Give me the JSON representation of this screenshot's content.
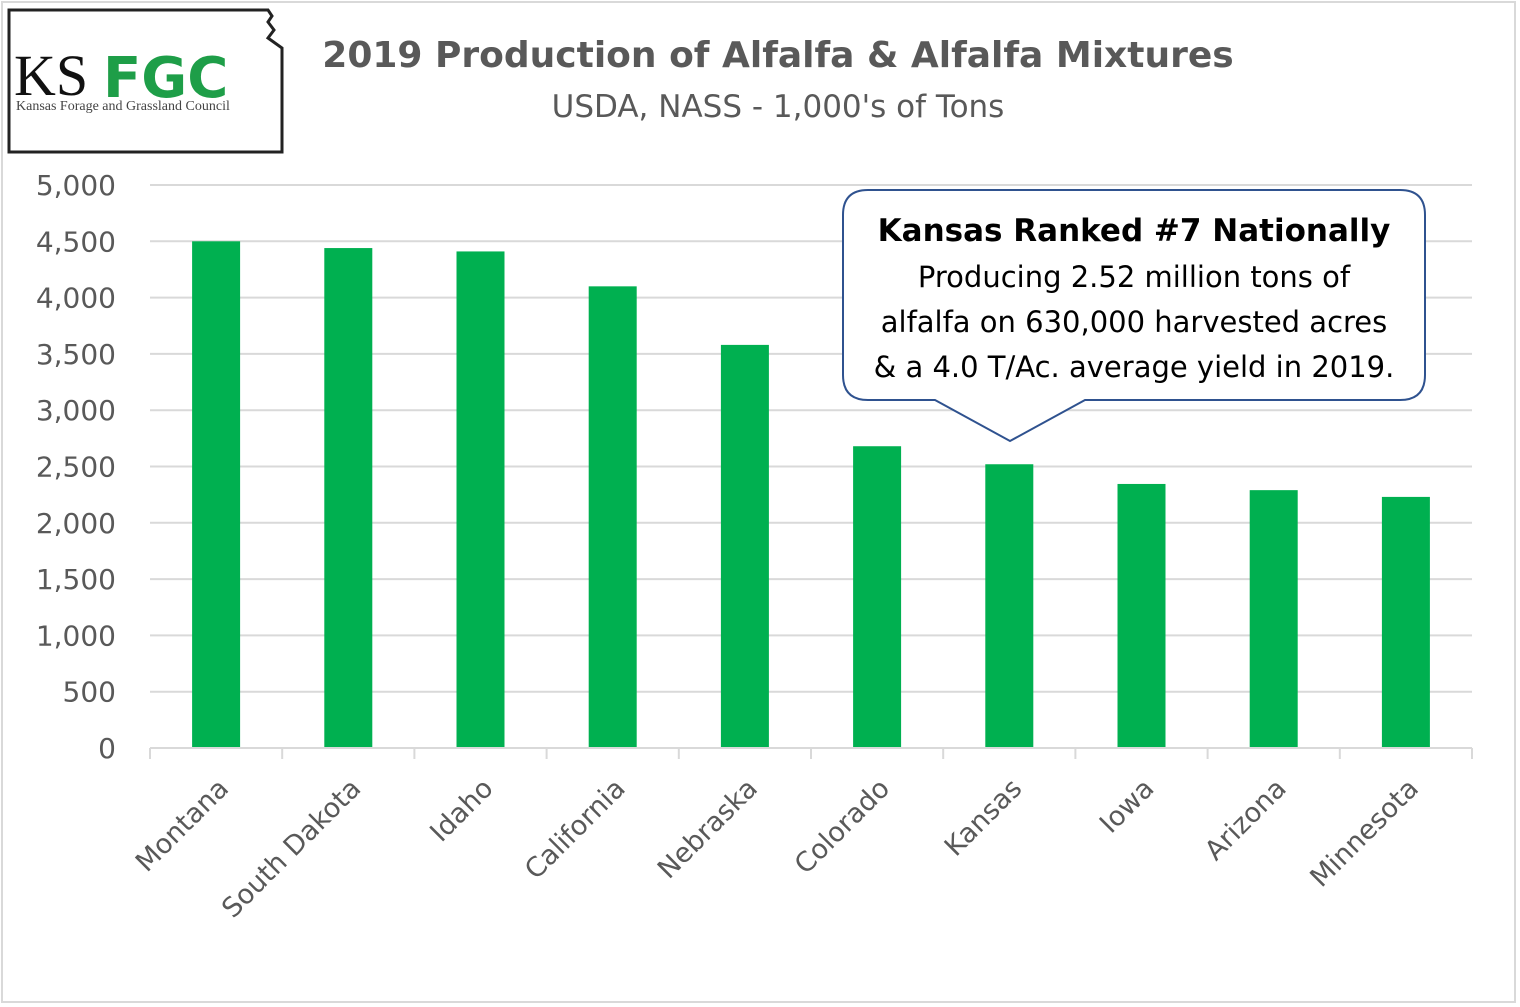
{
  "logo": {
    "text_ks": "KS",
    "text_fgc": "FGC",
    "tagline": "Kansas Forage and Grassland Council"
  },
  "colors": {
    "bar": "#00b050",
    "grid": "#d9d9d9",
    "callout_border": "#2f528f",
    "logo_green": "#1e9e48"
  },
  "chart_data": {
    "type": "bar",
    "title": "2019 Production of Alfalfa & Alfalfa Mixtures",
    "subtitle": "USDA, NASS - 1,000's of Tons",
    "xlabel": "",
    "ylabel": "",
    "ylim": [
      0,
      5000
    ],
    "yticks": [
      "0",
      "500",
      "1,000",
      "1,500",
      "2,000",
      "2,500",
      "3,000",
      "3,500",
      "4,000",
      "4,500",
      "5,000"
    ],
    "ytick_values": [
      0,
      500,
      1000,
      1500,
      2000,
      2500,
      3000,
      3500,
      4000,
      4500,
      5000
    ],
    "grid": true,
    "categories": [
      "Montana",
      "South Dakota",
      "Idaho",
      "California",
      "Nebraska",
      "Colorado",
      "Kansas",
      "Iowa",
      "Arizona",
      "Minnesota"
    ],
    "values": [
      4500,
      4440,
      4410,
      4100,
      3580,
      2680,
      2520,
      2345,
      2290,
      2230
    ],
    "annotation": {
      "target": "Kansas",
      "heading": "Kansas Ranked #7 Nationally",
      "lines": [
        "Producing 2.52 million tons of",
        "alfalfa on 630,000 harvested acres",
        "& a 4.0 T/Ac. average yield in 2019."
      ]
    }
  }
}
